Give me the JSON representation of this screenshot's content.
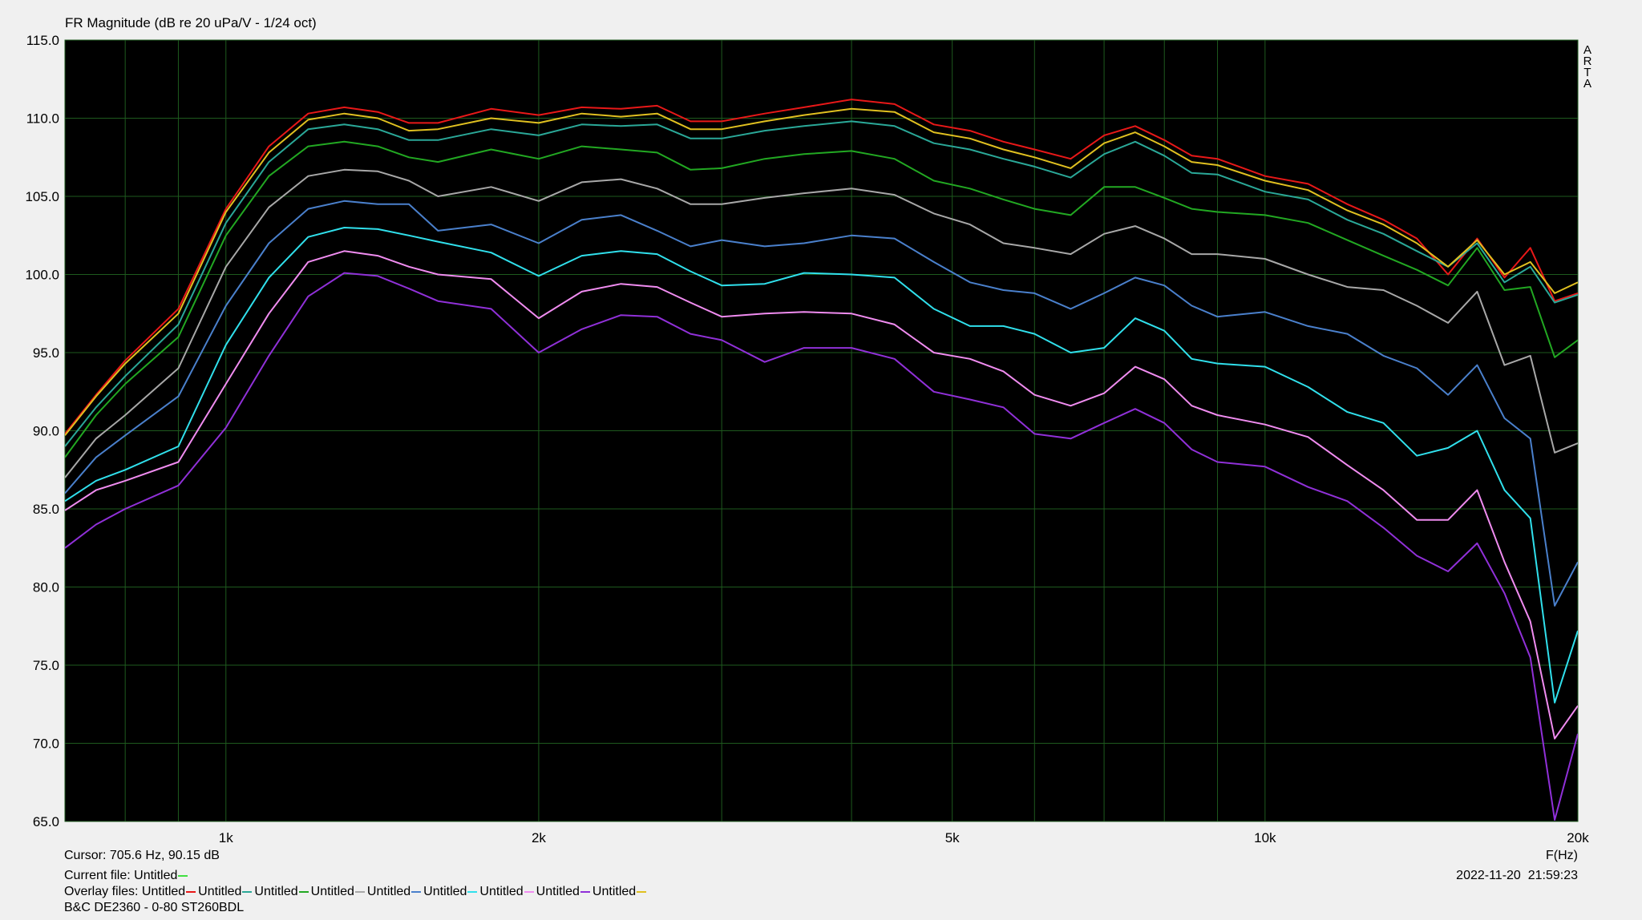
{
  "chart_data": {
    "type": "line",
    "title": "FR Magnitude (dB re 20 uPa/V - 1/24 oct)",
    "brand": "ARTA",
    "x_label": "F(Hz)",
    "x_scale": "log",
    "grid": true,
    "background": "#000000",
    "grid_color": "#1e5a1e",
    "xlim": [
      700,
      20000
    ],
    "xticks": [
      {
        "value": 1000,
        "label": "1k"
      },
      {
        "value": 2000,
        "label": "2k"
      },
      {
        "value": 5000,
        "label": "5k"
      },
      {
        "value": 10000,
        "label": "10k"
      },
      {
        "value": 20000,
        "label": "20k"
      }
    ],
    "x_minor_grid": [
      800,
      900,
      3000,
      4000,
      6000,
      7000,
      8000,
      9000
    ],
    "ylim": [
      65,
      115
    ],
    "yticks": [
      {
        "value": 65,
        "label": "65.0"
      },
      {
        "value": 70,
        "label": "70.0"
      },
      {
        "value": 75,
        "label": "75.0"
      },
      {
        "value": 80,
        "label": "80.0"
      },
      {
        "value": 85,
        "label": "85.0"
      },
      {
        "value": 90,
        "label": "90.0"
      },
      {
        "value": 95,
        "label": "95.0"
      },
      {
        "value": 100,
        "label": "100.0"
      },
      {
        "value": 105,
        "label": "105.0"
      },
      {
        "value": 110,
        "label": "110.0"
      },
      {
        "value": 115,
        "label": "115.0"
      }
    ],
    "cursor": "Cursor: 705.6 Hz, 90.15 dB",
    "current_file": {
      "label": "Current file:",
      "name": "Untitled",
      "color": "#40e040"
    },
    "overlay_label": "Overlay files:",
    "device": "B&C DE2360 - 0-80 ST260BDL",
    "timestamp": "2022-11-20  21:59:23",
    "x": [
      700,
      750,
      800,
      900,
      1000,
      1100,
      1200,
      1300,
      1400,
      1500,
      1600,
      1800,
      2000,
      2200,
      2400,
      2600,
      2800,
      3000,
      3300,
      3600,
      4000,
      4400,
      4800,
      5200,
      5600,
      6000,
      6500,
      7000,
      7500,
      8000,
      8500,
      9000,
      10000,
      11000,
      12000,
      13000,
      14000,
      15000,
      16000,
      17000,
      18000,
      19000,
      20000
    ],
    "series": [
      {
        "name": "Untitled",
        "color": "#e81818",
        "values": [
          89.8,
          92.3,
          94.5,
          97.8,
          104.2,
          108.2,
          110.3,
          110.7,
          110.4,
          109.7,
          109.7,
          110.6,
          110.2,
          110.7,
          110.6,
          110.8,
          109.8,
          109.8,
          110.3,
          110.7,
          111.2,
          110.9,
          109.6,
          109.2,
          108.5,
          108.0,
          107.4,
          108.9,
          109.5,
          108.6,
          107.6,
          107.4,
          106.3,
          105.8,
          104.5,
          103.5,
          102.3,
          100.0,
          102.3,
          99.8,
          101.7,
          98.3,
          98.8
        ]
      },
      {
        "name": "Untitled",
        "color": "#2aa898",
        "values": [
          89.0,
          91.5,
          93.5,
          96.8,
          103.3,
          107.2,
          109.3,
          109.6,
          109.3,
          108.6,
          108.6,
          109.3,
          108.9,
          109.6,
          109.5,
          109.6,
          108.7,
          108.7,
          109.2,
          109.5,
          109.8,
          109.5,
          108.4,
          108.0,
          107.4,
          106.9,
          106.2,
          107.7,
          108.5,
          107.6,
          106.5,
          106.4,
          105.3,
          104.8,
          103.5,
          102.6,
          101.5,
          100.5,
          102.0,
          99.5,
          100.5,
          98.2,
          98.7
        ]
      },
      {
        "name": "Untitled",
        "color": "#22a822",
        "values": [
          88.3,
          91.0,
          93.0,
          96.0,
          102.5,
          106.3,
          108.2,
          108.5,
          108.2,
          107.5,
          107.2,
          108.0,
          107.4,
          108.2,
          108.0,
          107.8,
          106.7,
          106.8,
          107.4,
          107.7,
          107.9,
          107.4,
          106.0,
          105.5,
          104.8,
          104.2,
          103.8,
          105.6,
          105.6,
          104.9,
          104.2,
          104.0,
          103.8,
          103.3,
          102.2,
          101.2,
          100.3,
          99.3,
          101.7,
          99.0,
          99.2,
          94.7,
          95.8
        ]
      },
      {
        "name": "Untitled",
        "color": "#a8a8a8",
        "values": [
          87.0,
          89.5,
          91.0,
          94.0,
          100.5,
          104.3,
          106.3,
          106.7,
          106.6,
          106.0,
          105.0,
          105.6,
          104.7,
          105.9,
          106.1,
          105.5,
          104.5,
          104.5,
          104.9,
          105.2,
          105.5,
          105.1,
          103.9,
          103.2,
          102.0,
          101.7,
          101.3,
          102.6,
          103.1,
          102.3,
          101.3,
          101.3,
          101.0,
          100.0,
          99.2,
          99.0,
          98.0,
          96.9,
          98.9,
          94.2,
          94.8,
          88.6,
          89.2
        ]
      },
      {
        "name": "Untitled",
        "color": "#4a80cc",
        "values": [
          86.0,
          88.3,
          89.7,
          92.2,
          98.0,
          102.0,
          104.2,
          104.7,
          104.5,
          104.5,
          102.8,
          103.2,
          102.0,
          103.5,
          103.8,
          102.8,
          101.8,
          102.2,
          101.8,
          102.0,
          102.5,
          102.3,
          100.8,
          99.5,
          99.0,
          98.8,
          97.8,
          98.8,
          99.8,
          99.3,
          98.0,
          97.3,
          97.6,
          96.7,
          96.2,
          94.8,
          94.0,
          92.3,
          94.2,
          90.8,
          89.5,
          78.8,
          81.6
        ]
      },
      {
        "name": "Untitled",
        "color": "#30e0ec",
        "values": [
          85.5,
          86.8,
          87.5,
          89.0,
          95.5,
          99.8,
          102.4,
          103.0,
          102.9,
          102.5,
          102.1,
          101.4,
          99.9,
          101.2,
          101.5,
          101.3,
          100.2,
          99.3,
          99.4,
          100.1,
          100.0,
          99.8,
          97.8,
          96.7,
          96.7,
          96.2,
          95.0,
          95.3,
          97.2,
          96.4,
          94.6,
          94.3,
          94.1,
          92.8,
          91.2,
          90.5,
          88.4,
          88.9,
          90.0,
          86.2,
          84.4,
          72.6,
          77.2
        ]
      },
      {
        "name": "Untitled",
        "color": "#f08cf0",
        "values": [
          84.9,
          86.2,
          86.8,
          88.0,
          93.0,
          97.5,
          100.8,
          101.5,
          101.2,
          100.5,
          100.0,
          99.7,
          97.2,
          98.9,
          99.4,
          99.2,
          98.2,
          97.3,
          97.5,
          97.6,
          97.5,
          96.8,
          95.0,
          94.6,
          93.8,
          92.3,
          91.6,
          92.4,
          94.1,
          93.3,
          91.6,
          91.0,
          90.4,
          89.6,
          87.8,
          86.2,
          84.3,
          84.3,
          86.2,
          81.6,
          77.8,
          70.3,
          72.4
        ]
      },
      {
        "name": "Untitled",
        "color": "#9030d8",
        "values": [
          82.5,
          84.0,
          85.0,
          86.5,
          90.2,
          94.8,
          98.6,
          100.1,
          99.9,
          99.1,
          98.3,
          97.8,
          95.0,
          96.5,
          97.4,
          97.3,
          96.2,
          95.8,
          94.4,
          95.3,
          95.3,
          94.6,
          92.5,
          92.0,
          91.5,
          89.8,
          89.5,
          90.5,
          91.4,
          90.5,
          88.8,
          88.0,
          87.7,
          86.4,
          85.5,
          83.8,
          82.0,
          81.0,
          82.8,
          79.6,
          75.5,
          65.1,
          70.6
        ]
      },
      {
        "name": "Untitled",
        "color": "#e0c020",
        "values": [
          89.7,
          92.2,
          94.3,
          97.5,
          104.0,
          107.8,
          109.9,
          110.3,
          110.0,
          109.2,
          109.3,
          110.0,
          109.7,
          110.3,
          110.1,
          110.3,
          109.3,
          109.3,
          109.8,
          110.2,
          110.6,
          110.4,
          109.1,
          108.7,
          108.0,
          107.5,
          106.8,
          108.4,
          109.1,
          108.2,
          107.2,
          107.0,
          106.0,
          105.4,
          104.1,
          103.2,
          102.0,
          100.5,
          102.2,
          100.0,
          100.8,
          98.8,
          99.5
        ]
      }
    ]
  }
}
